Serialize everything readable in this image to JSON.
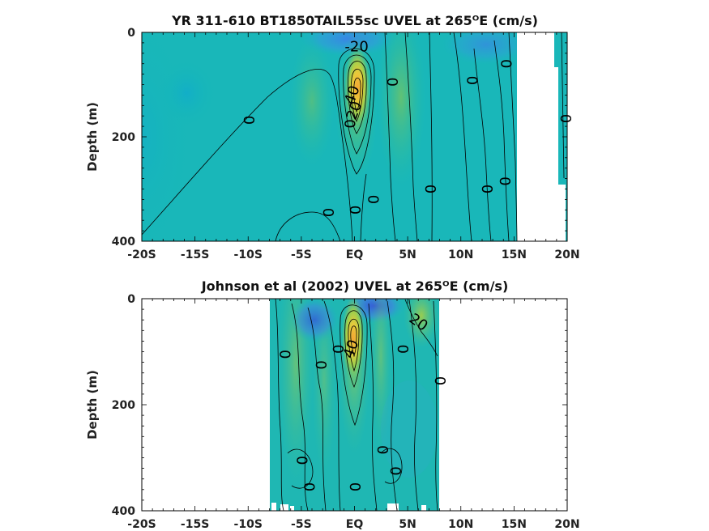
{
  "chart_data": [
    {
      "type": "heatmap",
      "title": "YR 311-610 BT1850TAIL55sc UVEL at 265ᴼE (cm/s)",
      "ylabel": "Depth (m)",
      "xlim": [
        -20,
        20
      ],
      "ylim": [
        0,
        400
      ],
      "y_reversed": true,
      "x_ticks": [
        -20,
        -15,
        -10,
        -5,
        0,
        5,
        10,
        15,
        20
      ],
      "x_tick_labels": [
        "-20S",
        "-15S",
        "-10S",
        "-5S",
        "EQ",
        "5N",
        "10N",
        "15N",
        "20N"
      ],
      "y_ticks": [
        0,
        200,
        400
      ],
      "y_tick_labels": [
        "0",
        "200",
        "400"
      ],
      "data_extent_x": [
        -20,
        20
      ],
      "contour_labels": [
        {
          "text": "-20",
          "lat": 0.2,
          "depth": 28
        },
        {
          "text": "40",
          "lat": -0.2,
          "depth": 120
        },
        {
          "text": "20",
          "lat": 0,
          "depth": 150
        },
        {
          "text": "0",
          "lat": -10,
          "depth": 168
        },
        {
          "text": "0",
          "lat": -0.5,
          "depth": 175
        },
        {
          "text": "0",
          "lat": 1.7,
          "depth": 320
        },
        {
          "text": "0",
          "lat": 0,
          "depth": 340
        },
        {
          "text": "0",
          "lat": -2.5,
          "depth": 345
        },
        {
          "text": "0",
          "lat": 3.5,
          "depth": 95
        },
        {
          "text": "0",
          "lat": 7.1,
          "depth": 300
        },
        {
          "text": "0",
          "lat": 11,
          "depth": 92
        },
        {
          "text": "0",
          "lat": 14.2,
          "depth": 60
        },
        {
          "text": "0",
          "lat": 12.4,
          "depth": 300
        },
        {
          "text": "0",
          "lat": 14.1,
          "depth": 285
        },
        {
          "text": "0",
          "lat": 19.8,
          "depth": 165
        }
      ]
    },
    {
      "type": "heatmap",
      "title": "Johnson et al (2002) UVEL at 265ᴼE (cm/s)",
      "ylabel": "Depth (m)",
      "xlim": [
        -20,
        20
      ],
      "ylim": [
        0,
        400
      ],
      "y_reversed": true,
      "x_ticks": [
        -20,
        -15,
        -10,
        -5,
        0,
        5,
        10,
        15,
        20
      ],
      "x_tick_labels": [
        "-20S",
        "-15S",
        "-10S",
        "-5S",
        "EQ",
        "5N",
        "10N",
        "15N",
        "20N"
      ],
      "y_ticks": [
        0,
        200,
        400
      ],
      "y_tick_labels": [
        "0",
        "200",
        "400"
      ],
      "data_extent_x": [
        -8,
        8
      ],
      "contour_labels": [
        {
          "text": "20",
          "lat": 6,
          "depth": 45
        },
        {
          "text": "40",
          "lat": -0.3,
          "depth": 95
        },
        {
          "text": "0",
          "lat": -6.6,
          "depth": 105
        },
        {
          "text": "0",
          "lat": -3.2,
          "depth": 125
        },
        {
          "text": "0",
          "lat": -1.6,
          "depth": 95
        },
        {
          "text": "0",
          "lat": 4.5,
          "depth": 95
        },
        {
          "text": "0",
          "lat": 8,
          "depth": 155
        },
        {
          "text": "0",
          "lat": 2.6,
          "depth": 285
        },
        {
          "text": "0",
          "lat": 3.8,
          "depth": 325
        },
        {
          "text": "0",
          "lat": -5,
          "depth": 305
        },
        {
          "text": "0",
          "lat": -4.3,
          "depth": 355
        },
        {
          "text": "0",
          "lat": 0,
          "depth": 355
        }
      ]
    }
  ]
}
